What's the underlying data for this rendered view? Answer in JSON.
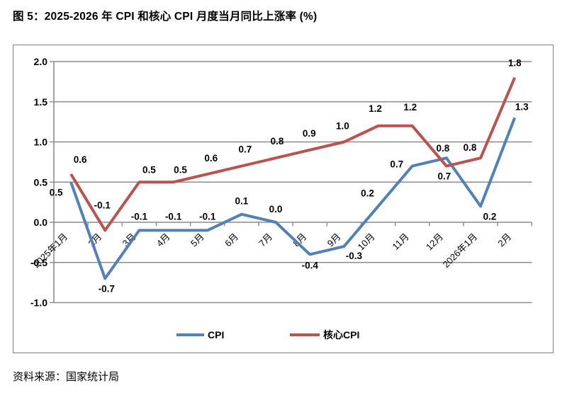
{
  "figure": {
    "title": "图 5：2025-2026 年 CPI 和核心 CPI 月度当月同比上涨率 (%)",
    "source": "资料来源：国家统计局"
  },
  "chart_data": {
    "type": "line",
    "title": "图 5：2025-2026 年 CPI 和核心 CPI 月度当月同比上涨率 (%)",
    "categories": [
      "2025年1月",
      "2月",
      "3月",
      "4月",
      "5月",
      "6月",
      "7月",
      "8月",
      "9月",
      "10月",
      "11月",
      "12月",
      "2026年1月",
      "2月"
    ],
    "series": [
      {
        "name": "CPI",
        "color": "#4F81BD",
        "values": [
          0.5,
          -0.7,
          -0.1,
          -0.1,
          -0.1,
          0.1,
          0.0,
          -0.4,
          -0.3,
          0.2,
          0.7,
          0.8,
          0.2,
          1.3
        ]
      },
      {
        "name": "核心CPI",
        "color": "#C0504D",
        "values": [
          0.6,
          -0.1,
          0.5,
          0.5,
          0.6,
          0.7,
          0.8,
          0.9,
          1.0,
          1.2,
          1.2,
          0.7,
          0.8,
          1.8
        ]
      }
    ],
    "ylim": [
      -1.0,
      2.0
    ],
    "ytick_step": 0.5,
    "ytick_labels": [
      "2.0",
      "1.5",
      "1.0",
      "0.5",
      "0.0",
      "-0.5",
      "-1.0"
    ],
    "grid": true,
    "data_labels": true,
    "legend_position": "bottom",
    "colors": {
      "gridline": "#8C8C8C",
      "axis": "#8C8C8C",
      "text": "#000000"
    }
  }
}
